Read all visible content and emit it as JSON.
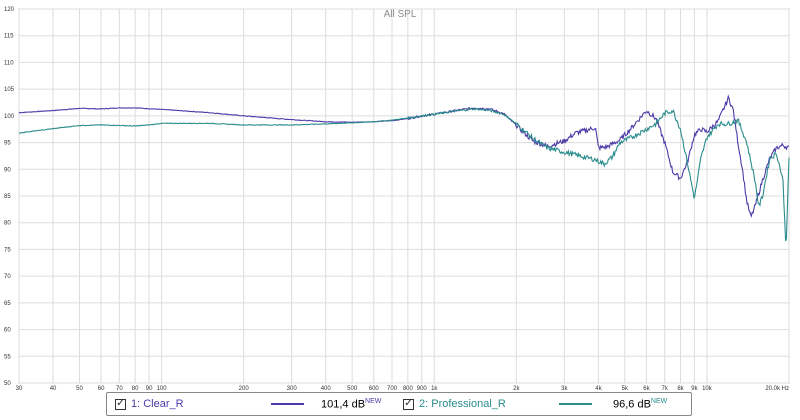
{
  "chart_data": {
    "type": "line",
    "title": "All SPL",
    "x_scale": "log",
    "xlim": [
      30,
      20000
    ],
    "ylim": [
      50,
      120
    ],
    "grid": true,
    "x_unit": "Hz",
    "x_ticks": [
      {
        "value": 30,
        "label": "30"
      },
      {
        "value": 40,
        "label": "40"
      },
      {
        "value": 50,
        "label": "50"
      },
      {
        "value": 60,
        "label": "60"
      },
      {
        "value": 70,
        "label": "70"
      },
      {
        "value": 80,
        "label": "80"
      },
      {
        "value": 90,
        "label": "90"
      },
      {
        "value": 100,
        "label": "100"
      },
      {
        "value": 200,
        "label": "200"
      },
      {
        "value": 300,
        "label": "300"
      },
      {
        "value": 400,
        "label": "400"
      },
      {
        "value": 500,
        "label": "500"
      },
      {
        "value": 600,
        "label": "600"
      },
      {
        "value": 700,
        "label": "700"
      },
      {
        "value": 800,
        "label": "800"
      },
      {
        "value": 900,
        "label": "900"
      },
      {
        "value": 1000,
        "label": "1k"
      },
      {
        "value": 2000,
        "label": "2k"
      },
      {
        "value": 3000,
        "label": "3k"
      },
      {
        "value": 4000,
        "label": "4k"
      },
      {
        "value": 5000,
        "label": "5k"
      },
      {
        "value": 6000,
        "label": "6k"
      },
      {
        "value": 7000,
        "label": "7k"
      },
      {
        "value": 8000,
        "label": "8k"
      },
      {
        "value": 9000,
        "label": "9k"
      },
      {
        "value": 10000,
        "label": "10k"
      },
      {
        "value": 20000,
        "label": "20.0k Hz"
      }
    ],
    "y_ticks": [
      50,
      55,
      60,
      65,
      70,
      75,
      80,
      85,
      90,
      95,
      100,
      105,
      110,
      115,
      120
    ],
    "series": [
      {
        "name": "1: Clear_R",
        "color": "#4b3aa8",
        "points": [
          [
            30,
            100.6
          ],
          [
            40,
            101
          ],
          [
            50,
            101.4
          ],
          [
            60,
            101.3
          ],
          [
            70,
            101.5
          ],
          [
            80,
            101.5
          ],
          [
            100,
            101.2
          ],
          [
            150,
            100.6
          ],
          [
            200,
            100
          ],
          [
            300,
            99.3
          ],
          [
            400,
            98.9
          ],
          [
            500,
            98.8
          ],
          [
            600,
            98.9
          ],
          [
            700,
            99.1
          ],
          [
            800,
            99.5
          ],
          [
            900,
            100
          ],
          [
            1000,
            100.3
          ],
          [
            1200,
            101
          ],
          [
            1400,
            101.5
          ],
          [
            1600,
            101.3
          ],
          [
            1800,
            100.4
          ],
          [
            2000,
            98.2
          ],
          [
            2300,
            95.3
          ],
          [
            2600,
            94.3
          ],
          [
            3000,
            95.3
          ],
          [
            3300,
            96.8
          ],
          [
            3600,
            97.3
          ],
          [
            3900,
            97.8
          ],
          [
            4000,
            94
          ],
          [
            4300,
            94.2
          ],
          [
            4800,
            95.5
          ],
          [
            5300,
            97.8
          ],
          [
            6000,
            101
          ],
          [
            6500,
            99.5
          ],
          [
            7000,
            95
          ],
          [
            7500,
            89.5
          ],
          [
            8000,
            88.3
          ],
          [
            8500,
            91.5
          ],
          [
            9000,
            96.5
          ],
          [
            9500,
            97.5
          ],
          [
            10000,
            97
          ],
          [
            11000,
            99
          ],
          [
            12000,
            103.4
          ],
          [
            12500,
            101
          ],
          [
            13000,
            95
          ],
          [
            13500,
            90
          ],
          [
            14000,
            84
          ],
          [
            14500,
            81
          ],
          [
            15000,
            83
          ],
          [
            16000,
            88
          ],
          [
            17000,
            92
          ],
          [
            18000,
            94
          ],
          [
            19000,
            94.5
          ],
          [
            20000,
            94
          ]
        ]
      },
      {
        "name": "2: Professional_R",
        "color": "#2a8c8c",
        "points": [
          [
            30,
            96.8
          ],
          [
            40,
            97.6
          ],
          [
            50,
            98.2
          ],
          [
            60,
            98.3
          ],
          [
            70,
            98.2
          ],
          [
            80,
            98.1
          ],
          [
            90,
            98.3
          ],
          [
            100,
            98.6
          ],
          [
            150,
            98.6
          ],
          [
            200,
            98.3
          ],
          [
            300,
            98.3
          ],
          [
            400,
            98.5
          ],
          [
            500,
            98.7
          ],
          [
            600,
            98.9
          ],
          [
            700,
            99.2
          ],
          [
            800,
            99.6
          ],
          [
            900,
            100
          ],
          [
            1000,
            100.3
          ],
          [
            1200,
            100.9
          ],
          [
            1400,
            101.3
          ],
          [
            1600,
            101
          ],
          [
            1800,
            100.3
          ],
          [
            2000,
            98.5
          ],
          [
            2300,
            95.8
          ],
          [
            2600,
            94
          ],
          [
            3000,
            93.2
          ],
          [
            3300,
            92.7
          ],
          [
            3600,
            92.2
          ],
          [
            3900,
            91.8
          ],
          [
            4200,
            91
          ],
          [
            4500,
            92.3
          ],
          [
            4800,
            95
          ],
          [
            5300,
            96
          ],
          [
            6000,
            97.5
          ],
          [
            6500,
            98.5
          ],
          [
            7000,
            100.5
          ],
          [
            7500,
            101
          ],
          [
            8000,
            97.5
          ],
          [
            8500,
            91
          ],
          [
            9000,
            84.5
          ],
          [
            9500,
            92
          ],
          [
            10000,
            96
          ],
          [
            11000,
            98.5
          ],
          [
            12000,
            98.5
          ],
          [
            13000,
            99.2
          ],
          [
            14000,
            95
          ],
          [
            15000,
            88
          ],
          [
            15500,
            83
          ],
          [
            16000,
            85
          ],
          [
            17000,
            92
          ],
          [
            18000,
            93
          ],
          [
            19000,
            88
          ],
          [
            19500,
            75
          ],
          [
            20000,
            92
          ]
        ]
      }
    ]
  },
  "legend": {
    "items": [
      {
        "label": "1: Clear_R",
        "value": "101,4 dB",
        "suffix": "NEW",
        "color": "#4b3aa8"
      },
      {
        "label": "2: Professional_R",
        "value": "96,6 dB",
        "suffix": "NEW",
        "color": "#2a8c8c"
      }
    ]
  }
}
